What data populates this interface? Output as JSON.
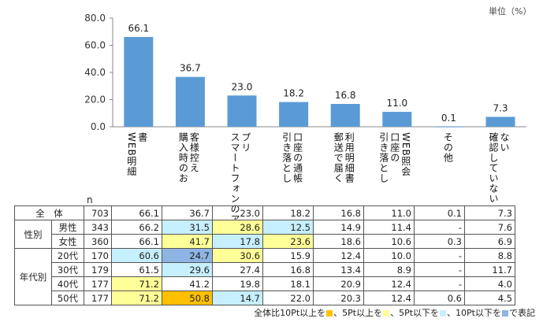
{
  "unit": "単位（%）",
  "chart_data": {
    "type": "bar",
    "categories": [
      {
        "lines": [
          "書",
          "WEB明細"
        ]
      },
      {
        "lines": [
          "客様控え",
          "購入時のお"
        ]
      },
      {
        "lines": [
          "プリ",
          "スマートフォンのア"
        ]
      },
      {
        "lines": [
          "口座の通帳",
          "引き落とし"
        ]
      },
      {
        "lines": [
          "利用明細書",
          "郵送で届く"
        ]
      },
      {
        "lines": [
          "WEB照会",
          "口座の",
          "引き落とし"
        ]
      },
      {
        "lines": [
          "その他"
        ]
      },
      {
        "lines": [
          "ない",
          "確認していない"
        ]
      }
    ],
    "values": [
      66.1,
      36.7,
      23.0,
      18.2,
      16.8,
      11.0,
      0.1,
      7.3
    ],
    "value_labels": [
      "66.1",
      "36.7",
      "23.0",
      "18.2",
      "16.8",
      "11.0",
      "0.1",
      "7.3"
    ],
    "ylim": [
      0,
      80
    ],
    "yticks": [
      "0.0",
      "20.0",
      "40.0",
      "60.0",
      "80.0"
    ],
    "bar_color": "#5b9bd5",
    "grid": false
  },
  "table": {
    "n_header": "n",
    "rows": [
      {
        "group": "全　体",
        "sub": "",
        "n": "703",
        "values": [
          "66.1",
          "36.7",
          "23.0",
          "18.2",
          "16.8",
          "11.0",
          "0.1",
          "7.3"
        ],
        "hl": [
          "",
          "",
          "",
          "",
          "",
          "",
          "",
          ""
        ]
      },
      {
        "group": "性別",
        "sub": "男性",
        "n": "343",
        "values": [
          "66.2",
          "31.5",
          "28.6",
          "12.5",
          "14.9",
          "11.4",
          "-",
          "7.6"
        ],
        "hl": [
          "",
          "cyan",
          "yellow",
          "cyan",
          "",
          "",
          "",
          ""
        ]
      },
      {
        "group": "",
        "sub": "女性",
        "n": "360",
        "values": [
          "66.1",
          "41.7",
          "17.8",
          "23.6",
          "18.6",
          "10.6",
          "0.3",
          "6.9"
        ],
        "hl": [
          "",
          "yellow",
          "cyan",
          "yellow",
          "",
          "",
          "",
          ""
        ]
      },
      {
        "group": "年代別",
        "sub": "20代",
        "n": "170",
        "values": [
          "60.6",
          "24.7",
          "30.6",
          "15.9",
          "12.4",
          "10.0",
          "-",
          "8.8"
        ],
        "hl": [
          "cyan",
          "blue",
          "yellow",
          "",
          "",
          "",
          "",
          ""
        ]
      },
      {
        "group": "",
        "sub": "30代",
        "n": "179",
        "values": [
          "61.5",
          "29.6",
          "27.4",
          "16.8",
          "13.4",
          "8.9",
          "-",
          "11.7"
        ],
        "hl": [
          "",
          "cyan",
          "",
          "",
          "",
          "",
          "",
          ""
        ]
      },
      {
        "group": "",
        "sub": "40代",
        "n": "177",
        "values": [
          "71.2",
          "41.2",
          "19.8",
          "18.1",
          "20.9",
          "12.4",
          "-",
          "4.0"
        ],
        "hl": [
          "yellow",
          "",
          "",
          "",
          "",
          "",
          "",
          ""
        ]
      },
      {
        "group": "",
        "sub": "50代",
        "n": "177",
        "values": [
          "71.2",
          "50.8",
          "14.7",
          "22.0",
          "20.3",
          "12.4",
          "0.6",
          "4.5"
        ],
        "hl": [
          "yellow",
          "orange",
          "cyan",
          "",
          "",
          "",
          "",
          ""
        ]
      }
    ]
  },
  "legend": {
    "t1": "全体比10Pt以上を",
    "t2": "、5Pt以上を",
    "t3": "、5Pt以下を",
    "t4": "、10Pt以下を",
    "t5": "で表記",
    "colors": {
      "orange": "#ffc000",
      "yellow": "#ffff99",
      "cyan": "#c6efff",
      "blue": "#8db4e2"
    }
  }
}
